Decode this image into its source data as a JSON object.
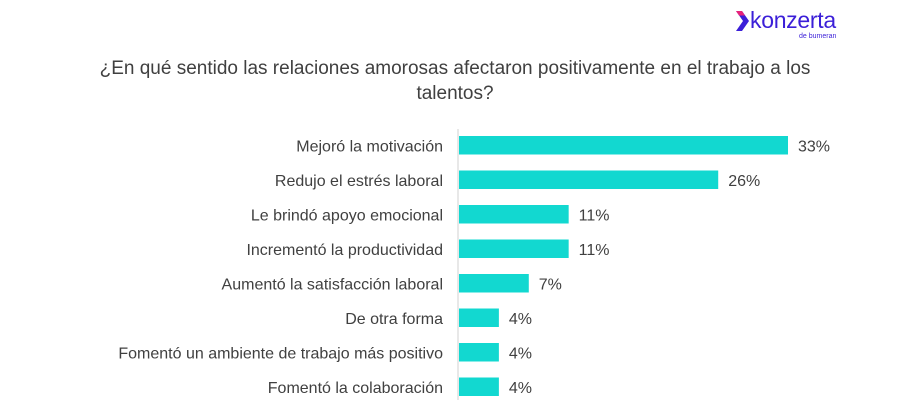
{
  "brand": {
    "name": "konzerta",
    "tagline": "de bumeran",
    "color": "#3b1fd8"
  },
  "chart_data": {
    "type": "bar",
    "orientation": "horizontal",
    "title": "¿En qué sentido las relaciones amorosas afectaron positivamente en el trabajo a los talentos?",
    "categories": [
      "Mejoró la motivación",
      "Redujo el estrés laboral",
      "Le brindó apoyo emocional",
      "Incrementó la productividad",
      "Aumentó la satisfacción laboral",
      "De otra forma",
      "Fomentó un ambiente de trabajo más positivo",
      "Fomentó la colaboración"
    ],
    "values": [
      33,
      26,
      11,
      11,
      7,
      4,
      4,
      4
    ],
    "value_labels": [
      "33%",
      "26%",
      "11%",
      "11%",
      "7%",
      "4%",
      "4%",
      "4%"
    ],
    "unit": "%",
    "bar_color": "#12d8d0",
    "xlim": [
      0,
      33
    ],
    "grid": false,
    "legend": "none"
  }
}
